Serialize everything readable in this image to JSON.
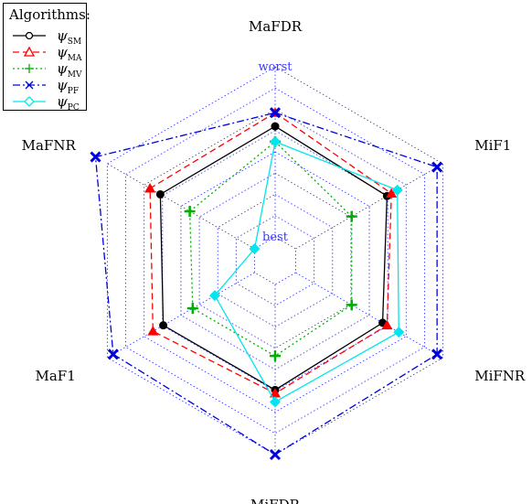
{
  "chart_data": {
    "type": "radar",
    "axes": [
      "MaFDR",
      "MiF1",
      "MiFNR",
      "MiFDR",
      "MaF1",
      "MaFNR"
    ],
    "ring_labels": {
      "outer": "worst",
      "inner": "best"
    },
    "rings": 8,
    "range": [
      0,
      1
    ],
    "legend": {
      "title": "Algorithms:",
      "placement": "top-left"
    },
    "series": [
      {
        "name": "ψSM",
        "name_base": "ψ",
        "name_sub": "SM",
        "color": "#000000",
        "dash": "solid",
        "marker": "circle",
        "values": [
          0.65,
          0.62,
          0.59,
          0.62,
          0.62,
          0.64
        ]
      },
      {
        "name": "ψMA",
        "name_base": "ψ",
        "name_sub": "MA",
        "color": "#ff0000",
        "dash": "dashed",
        "marker": "triangle",
        "values": [
          0.73,
          0.65,
          0.62,
          0.64,
          0.69,
          0.71
        ]
      },
      {
        "name": "ψMV",
        "name_base": "ψ",
        "name_sub": "MV",
        "color": "#00b000",
        "dash": "dotted",
        "marker": "plus",
        "values": [
          0.56,
          0.38,
          0.38,
          0.42,
          0.42,
          0.44
        ]
      },
      {
        "name": "ψPF",
        "name_base": "ψ",
        "name_sub": "PF",
        "color": "#0000dd",
        "dash": "dashdot",
        "marker": "x",
        "values": [
          0.73,
          0.96,
          0.96,
          1.0,
          0.96,
          1.08
        ]
      },
      {
        "name": "ψPC",
        "name_base": "ψ",
        "name_sub": "PC",
        "color": "#00e5ee",
        "dash": "solid",
        "marker": "diamond",
        "values": [
          0.56,
          0.69,
          0.7,
          0.69,
          0.27,
          0.0
        ]
      }
    ]
  }
}
